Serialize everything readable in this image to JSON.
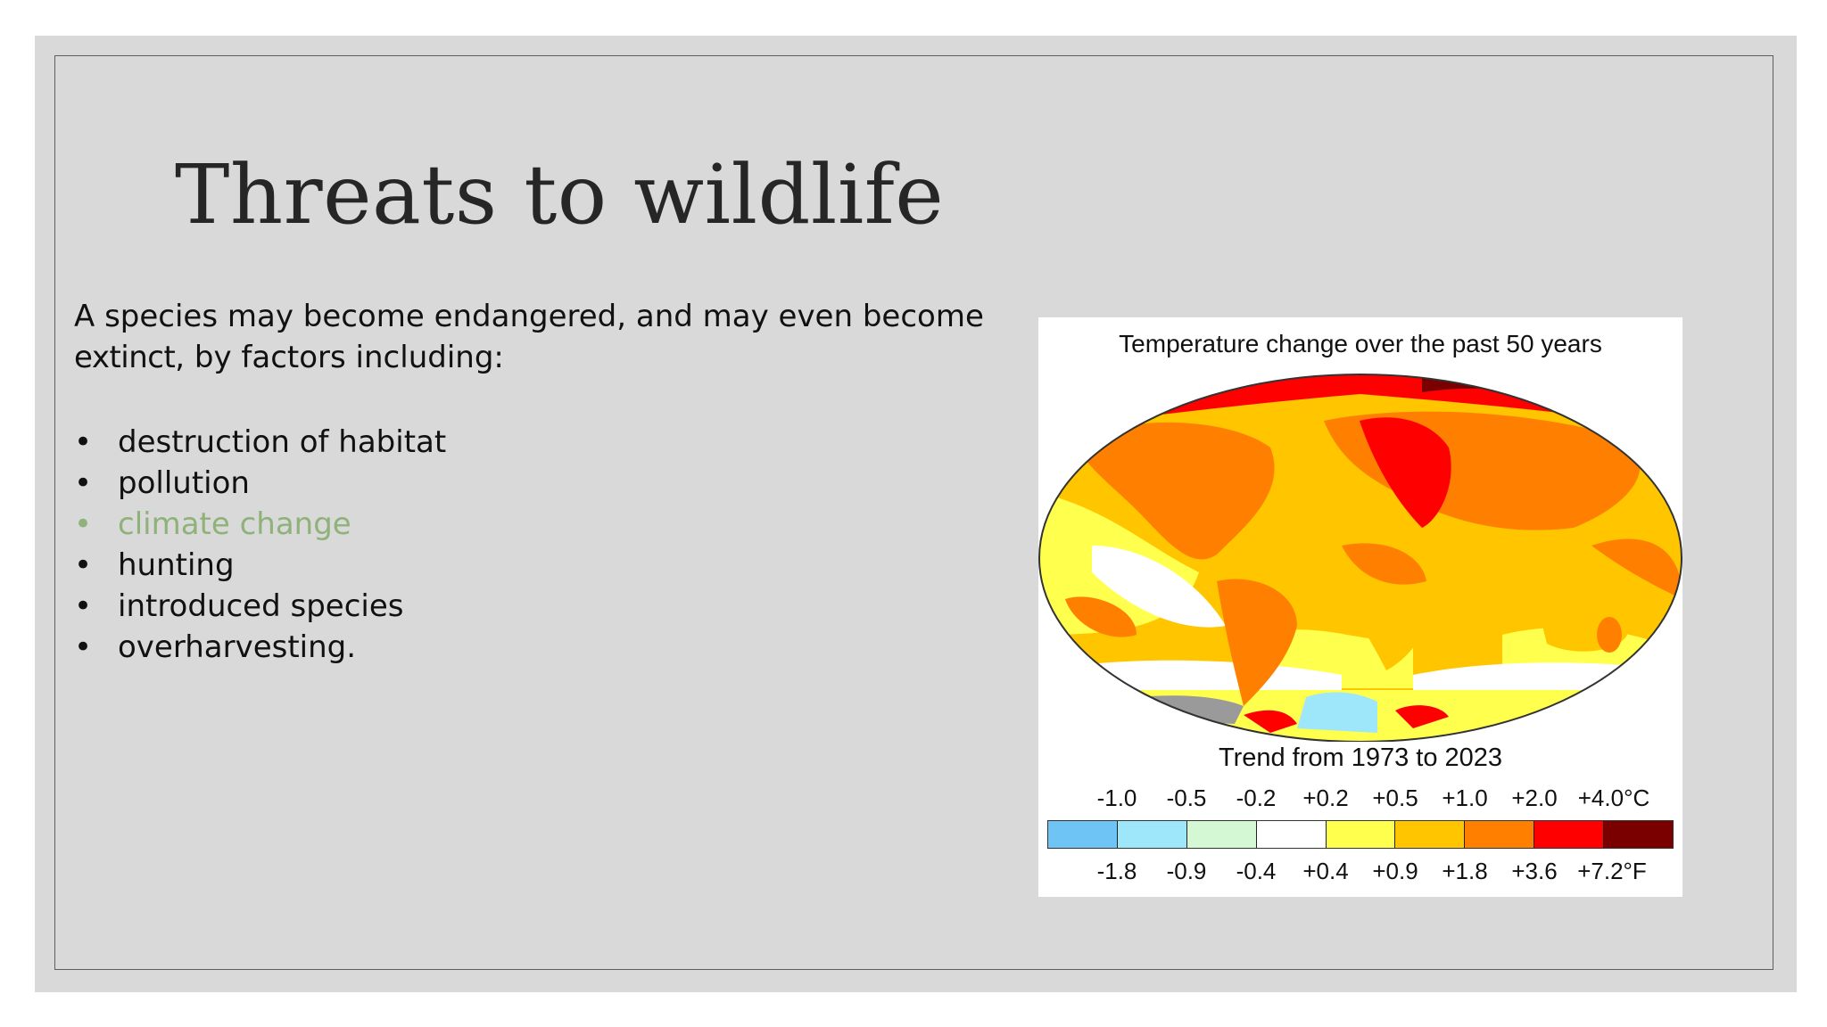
{
  "slide": {
    "title": "Threats to wildlife",
    "intro_part1": "A species may become endangered, and may even become ",
    "intro_keyword": "extinct",
    "intro_part2": ", by factors including:",
    "bullet_symbol": "•",
    "bullets": [
      "destruction of habitat",
      "pollution",
      "climate change",
      "hunting",
      "introduced species",
      "overharvesting."
    ],
    "highlight_color": "#8fb27a"
  },
  "figure": {
    "title": "Temperature change over the past 50 years",
    "subtitle": "Trend from 1973 to 2023",
    "celsius_labels": [
      "-1.0",
      "-0.5",
      "-0.2",
      "+0.2",
      "+0.5",
      "+1.0",
      "+2.0",
      "+4.0°C"
    ],
    "fahrenheit_labels": [
      "-1.8",
      "-0.9",
      "-0.4",
      "+0.4",
      "+0.9",
      "+1.8",
      "+3.6",
      "+7.2°F"
    ],
    "scale_colors": [
      "#6ec4f5",
      "#9ee6fa",
      "#d4f7d4",
      "#ffffff",
      "#ffff4d",
      "#ffc600",
      "#ff8000",
      "#ff0000",
      "#7a0000"
    ]
  }
}
